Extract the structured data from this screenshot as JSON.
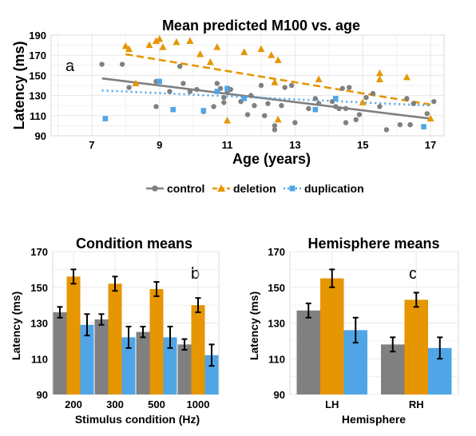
{
  "colors": {
    "control": "#808080",
    "deletion": "#E69600",
    "duplication": "#50A5E6",
    "grid": "#e8e8e8",
    "error": "#000000"
  },
  "chart_data": [
    {
      "panel": "a",
      "type": "scatter",
      "title": "Mean predicted M100 vs. age",
      "xlabel": "Age (years)",
      "ylabel": "Latency (ms)",
      "xlim": [
        5.8,
        17.4
      ],
      "ylim": [
        90,
        190
      ],
      "xticks": [
        7,
        9,
        11,
        13,
        15,
        17
      ],
      "yticks": [
        90,
        110,
        130,
        150,
        170,
        190
      ],
      "grid": true,
      "legend_position": "bottom",
      "series": [
        {
          "name": "control",
          "marker": "circle",
          "line": "solid",
          "fit": [
            [
              7.3,
              147
            ],
            [
              17.0,
              107
            ]
          ],
          "points": [
            [
              7.3,
              161
            ],
            [
              7.9,
              161
            ],
            [
              8.1,
              138
            ],
            [
              8.9,
              119
            ],
            [
              8.9,
              144
            ],
            [
              9.3,
              134
            ],
            [
              9.6,
              159
            ],
            [
              9.7,
              142
            ],
            [
              9.9,
              134
            ],
            [
              10.1,
              136
            ],
            [
              10.3,
              114
            ],
            [
              10.6,
              119
            ],
            [
              10.7,
              142
            ],
            [
              10.8,
              137
            ],
            [
              10.9,
              128
            ],
            [
              10.9,
              123
            ],
            [
              11.0,
              133
            ],
            [
              11.1,
              136
            ],
            [
              11.4,
              124
            ],
            [
              11.5,
              127
            ],
            [
              11.6,
              111
            ],
            [
              11.7,
              130
            ],
            [
              11.8,
              120
            ],
            [
              12.0,
              140
            ],
            [
              12.1,
              110
            ],
            [
              12.2,
              122
            ],
            [
              12.4,
              100
            ],
            [
              12.4,
              96
            ],
            [
              12.6,
              120
            ],
            [
              12.7,
              138
            ],
            [
              12.9,
              140
            ],
            [
              13.0,
              103
            ],
            [
              13.4,
              117
            ],
            [
              13.6,
              127
            ],
            [
              13.7,
              122
            ],
            [
              14.1,
              124
            ],
            [
              14.2,
              119
            ],
            [
              14.3,
              117
            ],
            [
              14.4,
              137
            ],
            [
              14.5,
              103
            ],
            [
              14.5,
              117
            ],
            [
              14.6,
              138
            ],
            [
              14.8,
              106
            ],
            [
              14.9,
              111
            ],
            [
              15.1,
              128
            ],
            [
              15.3,
              132
            ],
            [
              15.5,
              119
            ],
            [
              15.7,
              96
            ],
            [
              16.1,
              101
            ],
            [
              16.3,
              127
            ],
            [
              16.4,
              101
            ],
            [
              16.4,
              101
            ],
            [
              16.5,
              122
            ],
            [
              16.9,
              112
            ],
            [
              17.1,
              124
            ]
          ]
        },
        {
          "name": "deletion",
          "marker": "triangle",
          "line": "dashed",
          "fit": [
            [
              8.0,
              171
            ],
            [
              17.0,
              121
            ]
          ],
          "points": [
            [
              8.0,
              179
            ],
            [
              8.1,
              176
            ],
            [
              8.3,
              142
            ],
            [
              8.7,
              180
            ],
            [
              8.9,
              184
            ],
            [
              9.0,
              186
            ],
            [
              9.1,
              178
            ],
            [
              9.5,
              183
            ],
            [
              9.9,
              184
            ],
            [
              10.2,
              171
            ],
            [
              10.5,
              163
            ],
            [
              10.7,
              178
            ],
            [
              11.0,
              105
            ],
            [
              11.5,
              173
            ],
            [
              12.0,
              176
            ],
            [
              12.3,
              170
            ],
            [
              12.4,
              143
            ],
            [
              12.5,
              165
            ],
            [
              12.5,
              106
            ],
            [
              13.7,
              146
            ],
            [
              15.0,
              123
            ],
            [
              15.5,
              146
            ],
            [
              15.5,
              152
            ],
            [
              16.3,
              148
            ],
            [
              17.0,
              107
            ]
          ]
        },
        {
          "name": "duplication",
          "marker": "square",
          "line": "dotted",
          "fit": [
            [
              7.3,
              135
            ],
            [
              17.0,
              120
            ]
          ],
          "points": [
            [
              7.4,
              107
            ],
            [
              9.0,
              144
            ],
            [
              9.4,
              116
            ],
            [
              10.3,
              115
            ],
            [
              10.7,
              134
            ],
            [
              11.0,
              137
            ],
            [
              11.5,
              127
            ],
            [
              13.6,
              116
            ],
            [
              14.2,
              127
            ],
            [
              16.8,
              99
            ]
          ]
        }
      ]
    },
    {
      "panel": "b",
      "type": "bar",
      "title": "Condition means",
      "xlabel": "Stimulus condition (Hz)",
      "ylabel": "Latency (ms)",
      "ylim": [
        90,
        170
      ],
      "yticks": [
        90,
        110,
        130,
        150,
        170
      ],
      "categories": [
        "200",
        "300",
        "500",
        "1000"
      ],
      "series": [
        {
          "name": "control",
          "values": [
            136,
            132,
            125,
            118
          ],
          "errors": [
            3,
            3,
            3,
            3
          ]
        },
        {
          "name": "deletion",
          "values": [
            156,
            152,
            149,
            140
          ],
          "errors": [
            4,
            4,
            4,
            4
          ]
        },
        {
          "name": "duplication",
          "values": [
            129,
            122,
            122,
            112
          ],
          "errors": [
            6,
            6,
            6,
            6
          ]
        }
      ]
    },
    {
      "panel": "c",
      "type": "bar",
      "title": "Hemisphere means",
      "xlabel": "Hemisphere",
      "ylabel": "Latency (ms)",
      "ylim": [
        90,
        170
      ],
      "yticks": [
        90,
        110,
        130,
        150,
        170
      ],
      "categories": [
        "LH",
        "RH"
      ],
      "series": [
        {
          "name": "control",
          "values": [
            137,
            118
          ],
          "errors": [
            4,
            4
          ]
        },
        {
          "name": "deletion",
          "values": [
            155,
            143
          ],
          "errors": [
            5,
            4
          ]
        },
        {
          "name": "duplication",
          "values": [
            126,
            116
          ],
          "errors": [
            7,
            6
          ]
        }
      ]
    }
  ]
}
